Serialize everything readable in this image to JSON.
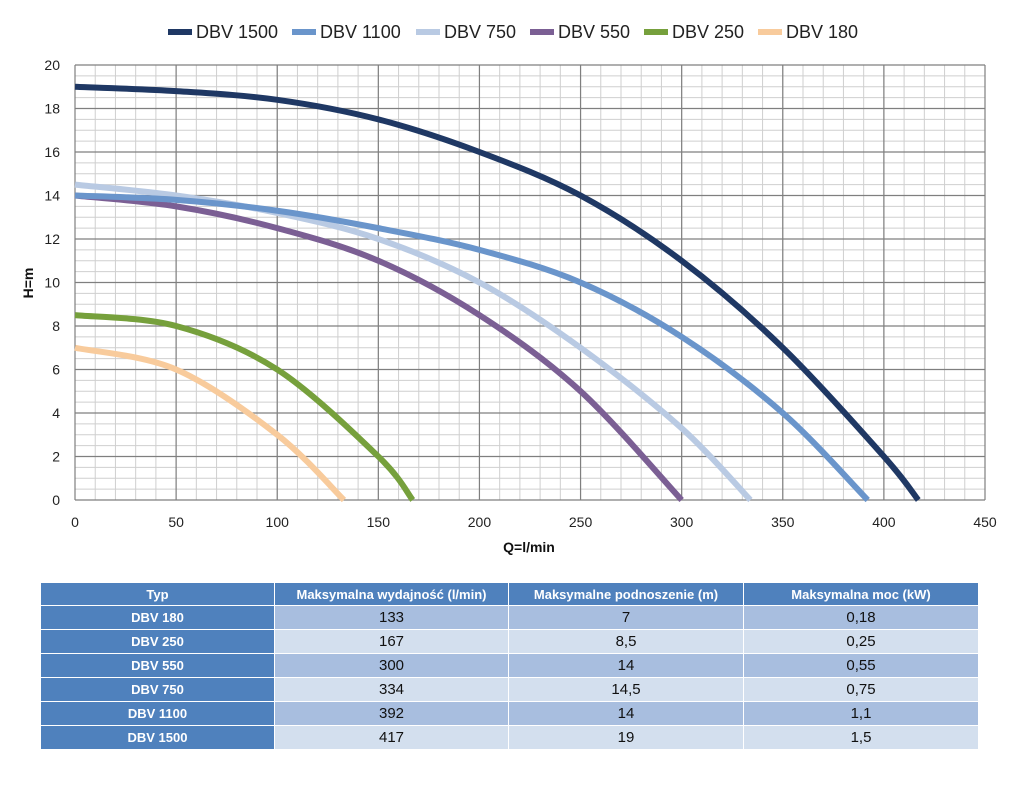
{
  "chart_data": {
    "type": "line",
    "title": "",
    "xlabel": "Q=l/min",
    "ylabel": "H=m",
    "xlim": [
      0,
      450
    ],
    "ylim": [
      0,
      20
    ],
    "x_ticks": [
      "0",
      "50",
      "100",
      "150",
      "200",
      "250",
      "300",
      "350",
      "400",
      "450"
    ],
    "y_ticks": [
      "0",
      "2",
      "4",
      "6",
      "8",
      "10",
      "12",
      "14",
      "16",
      "18",
      "20"
    ],
    "grid": true,
    "legend_position": "top",
    "series": [
      {
        "name": "DBV 1500",
        "color": "#1f3864",
        "x": [
          0,
          50,
          100,
          150,
          200,
          250,
          300,
          350,
          400,
          417
        ],
        "y": [
          19,
          18.8,
          18.4,
          17.5,
          16,
          14,
          11,
          7,
          2,
          0
        ]
      },
      {
        "name": "DBV 1100",
        "color": "#6a95cb",
        "x": [
          0,
          50,
          100,
          150,
          200,
          250,
          300,
          350,
          392
        ],
        "y": [
          14,
          13.8,
          13.3,
          12.5,
          11.5,
          10,
          7.5,
          4,
          0
        ]
      },
      {
        "name": "DBV 750",
        "color": "#b9cae3",
        "x": [
          0,
          50,
          100,
          150,
          200,
          250,
          300,
          334
        ],
        "y": [
          14.5,
          14,
          13.2,
          12,
          10,
          7,
          3.3,
          0
        ]
      },
      {
        "name": "DBV 550",
        "color": "#7b5f94",
        "x": [
          0,
          50,
          100,
          150,
          200,
          250,
          300
        ],
        "y": [
          14,
          13.5,
          12.5,
          11,
          8.5,
          5,
          0
        ]
      },
      {
        "name": "DBV 250",
        "color": "#76a03c",
        "x": [
          0,
          50,
          100,
          150,
          167
        ],
        "y": [
          8.5,
          8,
          6,
          2,
          0
        ]
      },
      {
        "name": "DBV 180",
        "color": "#f8cb9c",
        "x": [
          0,
          50,
          100,
          133
        ],
        "y": [
          7,
          6,
          3,
          0
        ]
      }
    ]
  },
  "table": {
    "headers": [
      "Typ",
      "Maksymalna wydajność (l/min)",
      "Maksymalne podnoszenie (m)",
      "Maksymalna moc (kW)"
    ],
    "rows": [
      [
        "DBV 180",
        "133",
        "7",
        "0,18"
      ],
      [
        "DBV 250",
        "167",
        "8,5",
        "0,25"
      ],
      [
        "DBV 550",
        "300",
        "14",
        "0,55"
      ],
      [
        "DBV 750",
        "334",
        "14,5",
        "0,75"
      ],
      [
        "DBV 1100",
        "392",
        "14",
        "1,1"
      ],
      [
        "DBV 1500",
        "417",
        "19",
        "1,5"
      ]
    ]
  }
}
